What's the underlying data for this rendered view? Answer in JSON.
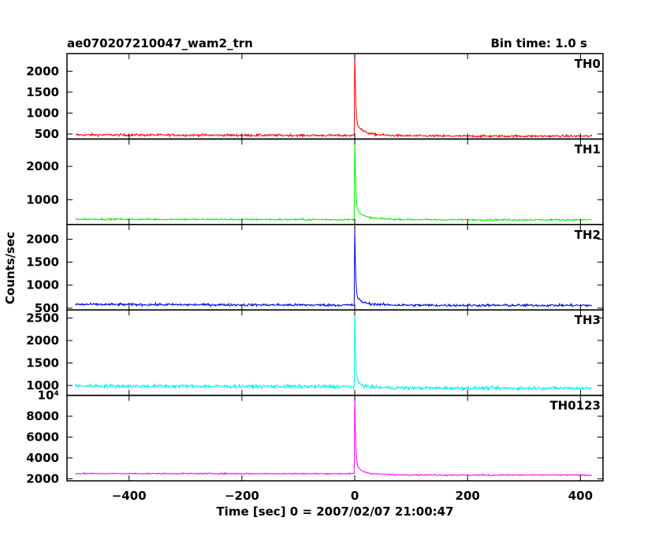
{
  "header": {
    "title": "ae070207210047_wam2_trn",
    "bin_time": "Bin time: 1.0 s"
  },
  "chart_data": {
    "type": "line",
    "title": "ae070207210047_wam2_trn",
    "subtitle": "Bin time: 1.0 s",
    "xlabel": "Time [sec] 0 = 2007/02/07 21:00:47",
    "ylabel": "Counts/sec",
    "xlim": [
      -510,
      440
    ],
    "x_ticks": [
      -400,
      -200,
      0,
      200,
      400
    ],
    "x_tick_labels": [
      "−400",
      "−200",
      "0",
      "200",
      "400"
    ],
    "x_start": -495,
    "x_end": 420,
    "burst_time": 0,
    "grid": false,
    "panels": [
      {
        "name": "TH0",
        "color": "#ff0000",
        "ylim": [
          380,
          2420
        ],
        "y_ticks": [
          500,
          1000,
          1500,
          2000
        ],
        "y_tick_labels": [
          "500",
          "1000",
          "1500",
          "2000"
        ],
        "pre_level": 480,
        "post_level": 450,
        "peak": 2400,
        "shoulder": 1050,
        "noise": 28
      },
      {
        "name": "TH1",
        "color": "#00ee00",
        "ylim": [
          260,
          2820
        ],
        "y_ticks": [
          1000,
          2000
        ],
        "y_tick_labels": [
          "1000",
          "2000"
        ],
        "pre_level": 420,
        "post_level": 400,
        "peak": 2800,
        "shoulder": 1050,
        "noise": 25
      },
      {
        "name": "TH2",
        "color": "#0000dd",
        "ylim": [
          460,
          2320
        ],
        "y_ticks": [
          500,
          1000,
          1500,
          2000
        ],
        "y_tick_labels": [
          "500",
          "1000",
          "1500",
          "2000"
        ],
        "pre_level": 580,
        "post_level": 560,
        "peak": 2260,
        "shoulder": 900,
        "noise": 28
      },
      {
        "name": "TH3",
        "color": "#00eeee",
        "ylim": [
          780,
          2680
        ],
        "y_ticks": [
          1000,
          1500,
          2000,
          2500
        ],
        "y_tick_labels": [
          "1000",
          "1500",
          "2000",
          "2500"
        ],
        "pre_level": 990,
        "post_level": 940,
        "peak": 2630,
        "shoulder": 1250,
        "noise": 40
      },
      {
        "name": "TH0123",
        "color": "#ff00ff",
        "ylim": [
          1800,
          10000
        ],
        "y_ticks": [
          2000,
          4000,
          6000,
          8000,
          10000
        ],
        "y_tick_labels": [
          "2000",
          "4000",
          "6000",
          "8000",
          "10⁴"
        ],
        "pre_level": 2500,
        "post_level": 2350,
        "peak": 9900,
        "shoulder": 4100,
        "noise": 60
      }
    ]
  }
}
